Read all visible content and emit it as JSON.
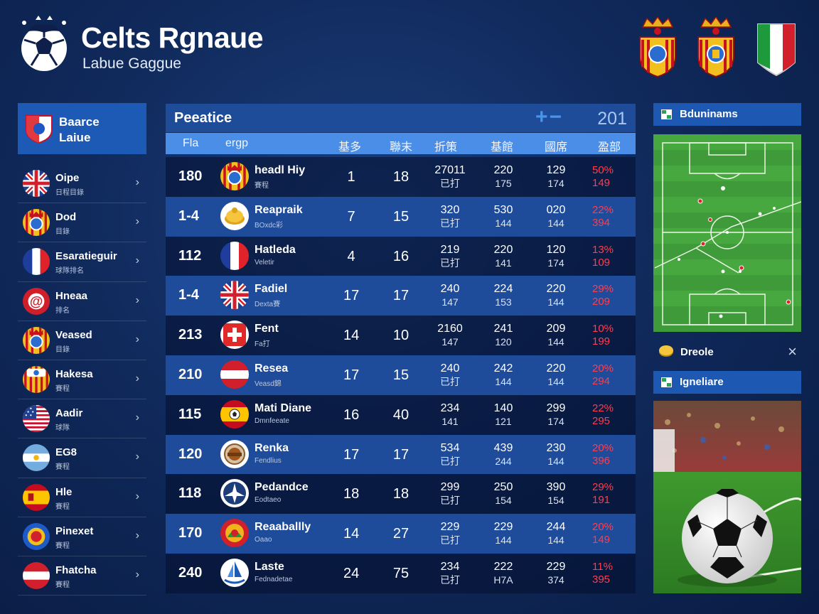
{
  "header": {
    "title": "Celts Rgnaue",
    "subtitle": "Labue  Gaggue"
  },
  "sidebar": {
    "header_line1": "Baarce",
    "header_line2": "Laiue",
    "items": [
      {
        "name": "Oipe",
        "sub": "日程目錄",
        "flag": "uk"
      },
      {
        "name": "Dod",
        "sub": "目錄",
        "flag": "crest"
      },
      {
        "name": "Esaratieguir",
        "sub": "球隊排名",
        "flag": "france"
      },
      {
        "name": "Hneaa",
        "sub": "排名",
        "flag": "red-a"
      },
      {
        "name": "Veased",
        "sub": "目錄",
        "flag": "crest"
      },
      {
        "name": "Hakesa",
        "sub": "賽程",
        "flag": "catalan"
      },
      {
        "name": "Aadir",
        "sub": "球隊",
        "flag": "usa"
      },
      {
        "name": "EG8",
        "sub": "賽程",
        "flag": "argentina"
      },
      {
        "name": "Hle",
        "sub": "賽程",
        "flag": "spain"
      },
      {
        "name": "Pinexet",
        "sub": "賽程",
        "flag": "blue-crest"
      },
      {
        "name": "Fhatcha",
        "sub": "賽程",
        "flag": "austria"
      }
    ]
  },
  "table": {
    "title": "Peeatice",
    "controls": "+−",
    "value": "201",
    "columns": [
      "Fla",
      "ergp",
      "基多",
      "聯末",
      "折策",
      "基館",
      "國席",
      "盈部"
    ],
    "rows": [
      {
        "rank": "180",
        "team": "headl Hiy",
        "sub": "賽程",
        "badge": "crest",
        "c1": "1",
        "c2": "18",
        "s1": [
          "27011",
          "已打"
        ],
        "s2": [
          "220",
          "175"
        ],
        "s3": [
          "129",
          "174"
        ],
        "pct": [
          "50%",
          "149"
        ]
      },
      {
        "rank": "1-4",
        "team": "Reapraik",
        "sub": "BOxdc彩",
        "badge": "gold",
        "c1": "7",
        "c2": "15",
        "s1": [
          "320",
          "已打"
        ],
        "s2": [
          "530",
          "144"
        ],
        "s3": [
          "020",
          "144"
        ],
        "pct": [
          "22%",
          "394"
        ]
      },
      {
        "rank": "112",
        "team": "Hatleda",
        "sub": "Veletir",
        "badge": "france",
        "c1": "4",
        "c2": "16",
        "s1": [
          "219",
          "已打"
        ],
        "s2": [
          "220",
          "141"
        ],
        "s3": [
          "120",
          "174"
        ],
        "pct": [
          "13%",
          "109"
        ]
      },
      {
        "rank": "1-4",
        "team": "Fadiel",
        "sub": "Dexta賽",
        "badge": "uk",
        "c1": "17",
        "c2": "17",
        "s1": [
          "240",
          "147"
        ],
        "s2": [
          "224",
          "153"
        ],
        "s3": [
          "220",
          "144"
        ],
        "pct": [
          "29%",
          "209"
        ]
      },
      {
        "rank": "213",
        "team": "Fent",
        "sub": "Fa打",
        "badge": "swiss",
        "c1": "14",
        "c2": "10",
        "s1": [
          "2160",
          "147"
        ],
        "s2": [
          "241",
          "120"
        ],
        "s3": [
          "209",
          "144"
        ],
        "pct": [
          "10%",
          "199"
        ]
      },
      {
        "rank": "210",
        "team": "Resea",
        "sub": "Veasd錦",
        "badge": "austria",
        "c1": "17",
        "c2": "15",
        "s1": [
          "240",
          "已打"
        ],
        "s2": [
          "242",
          "144"
        ],
        "s3": [
          "220",
          "144"
        ],
        "pct": [
          "20%",
          "294"
        ]
      },
      {
        "rank": "115",
        "team": "Mati Diane",
        "sub": "Dmnfeeate",
        "badge": "spain-ball",
        "c1": "16",
        "c2": "40",
        "s1": [
          "234",
          "141"
        ],
        "s2": [
          "140",
          "121"
        ],
        "s3": [
          "299",
          "174"
        ],
        "pct": [
          "22%",
          "295"
        ]
      },
      {
        "rank": "120",
        "team": "Renka",
        "sub": "Fendlius",
        "badge": "brown",
        "c1": "17",
        "c2": "17",
        "s1": [
          "534",
          "已打"
        ],
        "s2": [
          "439",
          "244"
        ],
        "s3": [
          "230",
          "144"
        ],
        "pct": [
          "20%",
          "396"
        ]
      },
      {
        "rank": "118",
        "team": "Pedandce",
        "sub": "Eodtaeo",
        "badge": "plane",
        "c1": "18",
        "c2": "18",
        "s1": [
          "299",
          "已打"
        ],
        "s2": [
          "250",
          "154"
        ],
        "s3": [
          "390",
          "154"
        ],
        "pct": [
          "29%",
          "191"
        ]
      },
      {
        "rank": "170",
        "team": "Reaaballly",
        "sub": "Oaao",
        "badge": "red-gold",
        "c1": "14",
        "c2": "27",
        "s1": [
          "229",
          "已打"
        ],
        "s2": [
          "229",
          "144"
        ],
        "s3": [
          "244",
          "144"
        ],
        "pct": [
          "20%",
          "149"
        ]
      },
      {
        "rank": "240",
        "team": "Laste",
        "sub": "Fednadetae",
        "badge": "sail",
        "c1": "24",
        "c2": "75",
        "s1": [
          "234",
          "已打"
        ],
        "s2": [
          "222",
          "H7A"
        ],
        "s3": [
          "229",
          "374"
        ],
        "pct": [
          "11%",
          "395"
        ]
      }
    ]
  },
  "right_panel": {
    "pitch_title": "Bduninams",
    "favorite_label": "Dreole",
    "close_icon": "×",
    "photo_title": "Igneliare"
  }
}
